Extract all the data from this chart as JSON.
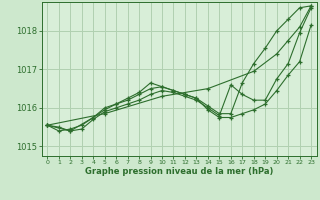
{
  "background_color": "#cde8cd",
  "plot_bg_color": "#d8eed8",
  "grid_color": "#b0d0b0",
  "line_color": "#2d6e2d",
  "marker_color": "#2d6e2d",
  "xlabel": "Graphe pression niveau de la mer (hPa)",
  "xlabel_color": "#2d6e2d",
  "tick_color": "#2d6e2d",
  "xlim": [
    -0.5,
    23.5
  ],
  "ylim": [
    1014.75,
    1018.75
  ],
  "yticks": [
    1015,
    1016,
    1017,
    1018
  ],
  "xticks": [
    0,
    1,
    2,
    3,
    4,
    5,
    6,
    7,
    8,
    9,
    10,
    11,
    12,
    13,
    14,
    15,
    16,
    17,
    18,
    19,
    20,
    21,
    22,
    23
  ],
  "lines": [
    {
      "x": [
        0,
        1,
        2,
        3,
        4,
        5,
        6,
        7,
        8,
        9,
        10,
        11,
        12,
        13,
        14,
        15,
        16,
        17,
        18,
        19,
        20,
        21,
        22,
        23
      ],
      "y": [
        1015.55,
        1015.4,
        1015.45,
        1015.55,
        1015.75,
        1015.95,
        1016.1,
        1016.2,
        1016.35,
        1016.5,
        1016.55,
        1016.45,
        1016.35,
        1016.25,
        1016.05,
        1015.85,
        1015.85,
        1016.65,
        1017.15,
        1017.55,
        1018.0,
        1018.3,
        1018.6,
        1018.65
      ]
    },
    {
      "x": [
        0,
        2,
        4,
        5,
        6,
        7,
        8,
        9,
        10,
        11,
        12,
        13,
        14,
        15,
        16,
        17,
        18,
        19,
        20,
        21,
        22,
        23
      ],
      "y": [
        1015.55,
        1015.4,
        1015.75,
        1016.0,
        1016.1,
        1016.25,
        1016.4,
        1016.65,
        1016.55,
        1016.45,
        1016.35,
        1016.25,
        1015.95,
        1015.75,
        1015.75,
        1015.85,
        1015.95,
        1016.1,
        1016.45,
        1016.85,
        1017.2,
        1018.15
      ]
    },
    {
      "x": [
        0,
        1,
        2,
        3,
        4,
        5,
        6,
        7,
        8,
        9,
        10,
        11,
        12,
        13,
        14,
        15,
        16,
        17,
        18,
        19,
        20,
        21,
        22,
        23
      ],
      "y": [
        1015.55,
        1015.5,
        1015.4,
        1015.45,
        1015.7,
        1015.9,
        1016.0,
        1016.1,
        1016.2,
        1016.35,
        1016.45,
        1016.4,
        1016.3,
        1016.2,
        1016.0,
        1015.8,
        1016.6,
        1016.35,
        1016.2,
        1016.2,
        1016.75,
        1017.15,
        1017.95,
        1018.6
      ]
    },
    {
      "x": [
        0,
        5,
        10,
        14,
        18,
        20,
        21,
        22,
        23
      ],
      "y": [
        1015.55,
        1015.85,
        1016.3,
        1016.5,
        1016.95,
        1017.4,
        1017.75,
        1018.1,
        1018.65
      ]
    }
  ]
}
